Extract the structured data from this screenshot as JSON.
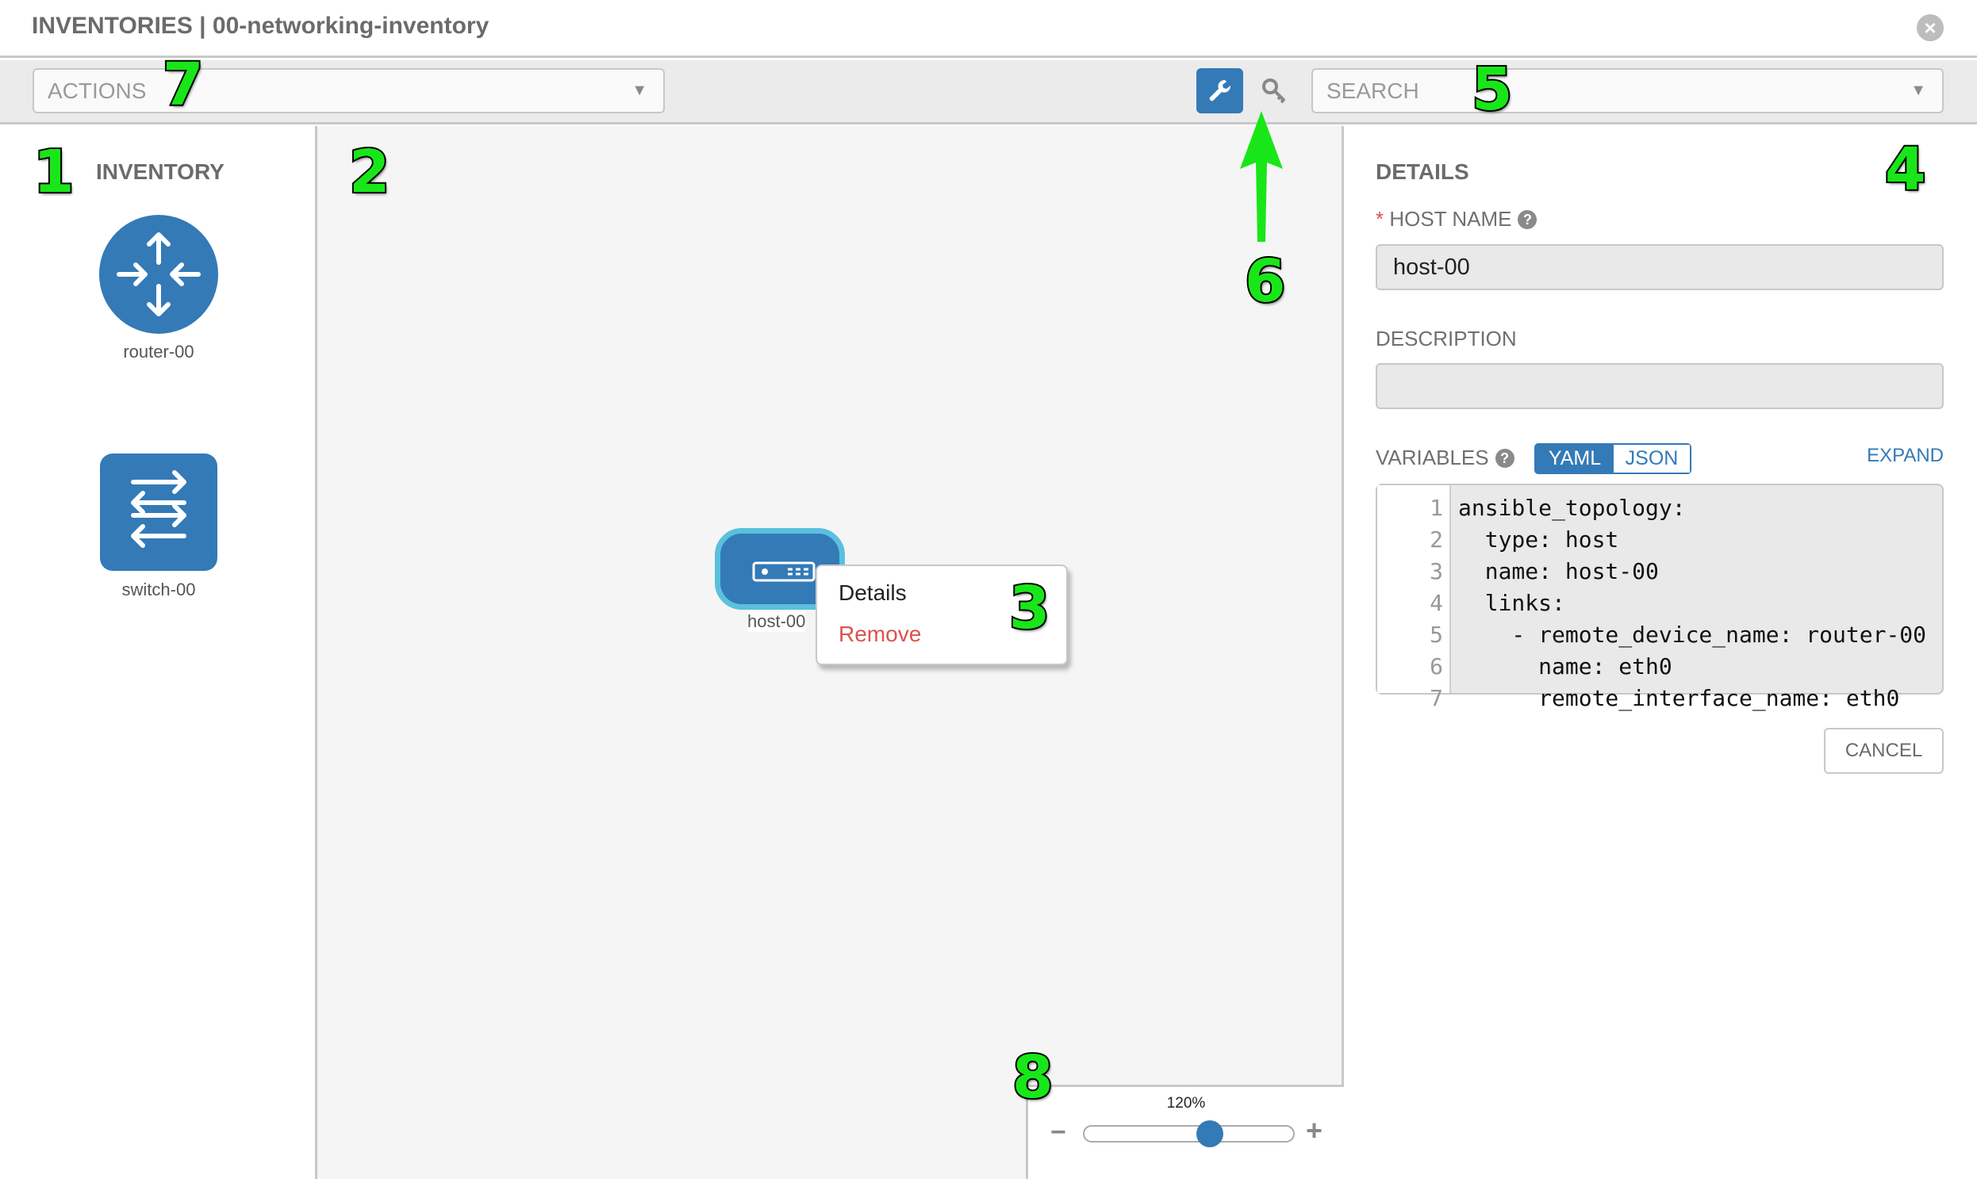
{
  "header": {
    "title": "INVENTORIES | 00-networking-inventory"
  },
  "toolbar": {
    "actions_placeholder": "ACTIONS",
    "search_placeholder": "SEARCH",
    "active_tool": "wrench-icon",
    "secondary_tool": "key-icon"
  },
  "inventory": {
    "heading": "INVENTORY",
    "items": [
      {
        "label": "router-00",
        "icon": "router-icon"
      },
      {
        "label": "switch-00",
        "icon": "switch-icon"
      }
    ]
  },
  "canvas": {
    "node": {
      "label": "host-00",
      "icon": "server-icon"
    },
    "context_menu": {
      "details": "Details",
      "remove": "Remove"
    }
  },
  "details": {
    "heading": "DETAILS",
    "host_name_label": "HOST NAME",
    "required_mark": "*",
    "host_name_value": "host-00",
    "description_label": "DESCRIPTION",
    "description_value": "",
    "variables_label": "VARIABLES",
    "yaml": "YAML",
    "json": "JSON",
    "selected_format": "YAML",
    "expand": "EXPAND",
    "code_lines": [
      {
        "n": "1",
        "text": "ansible_topology:"
      },
      {
        "n": "2",
        "text": "  type: host"
      },
      {
        "n": "3",
        "text": "  name: host-00"
      },
      {
        "n": "4",
        "text": "  links:"
      },
      {
        "n": "5",
        "text": "    - remote_device_name: router-00"
      },
      {
        "n": "6",
        "text": "      name: eth0"
      },
      {
        "n": "7",
        "text": "      remote_interface_name: eth0"
      }
    ],
    "cancel": "CANCEL"
  },
  "zoom": {
    "label": "120%",
    "value_percent": 120,
    "slider_fraction": 0.6,
    "minus": "−",
    "plus": "+"
  },
  "annotations": [
    "1",
    "2",
    "3",
    "4",
    "5",
    "6",
    "7",
    "8"
  ],
  "colors": {
    "accent": "#337ab7",
    "danger": "#d9534f",
    "annotation": "#19e619",
    "selected_outline": "#5bc0de"
  }
}
